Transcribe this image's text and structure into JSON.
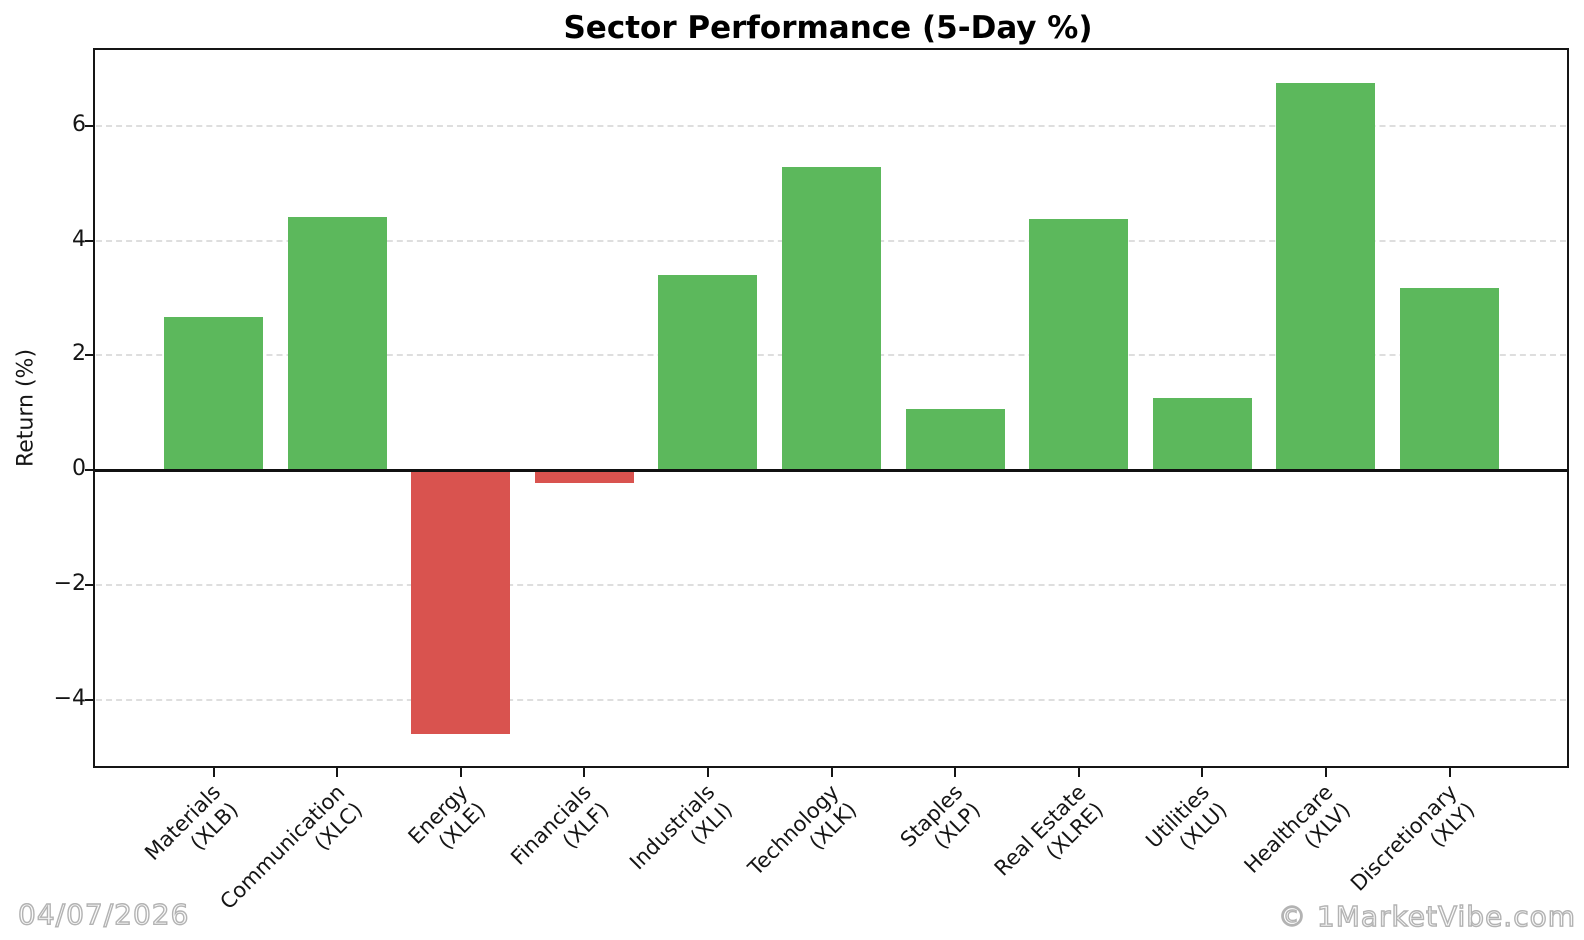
{
  "title": "Sector Performance (5-Day %)",
  "footer": {
    "date": "04/07/2026",
    "brand": "© 1MarketVibe.com"
  },
  "colors": {
    "positive_bar": "#5cb85c",
    "negative_bar": "#d9534f",
    "gridline": "#dedede",
    "axis": "#151515",
    "watermark": "#b3b3b3"
  },
  "chart_data": {
    "type": "bar",
    "title": "Sector Performance (5-Day %)",
    "xlabel": "",
    "ylabel": "Return (%)",
    "ylim": [
      -5.15,
      7.32
    ],
    "grid": true,
    "legend": false,
    "yticks": [
      {
        "value": 6,
        "label": "6"
      },
      {
        "value": 4,
        "label": "4"
      },
      {
        "value": 2,
        "label": "2"
      },
      {
        "value": 0,
        "label": "0"
      },
      {
        "value": -2,
        "label": "−2"
      },
      {
        "value": -4,
        "label": "−4"
      }
    ],
    "categories": [
      {
        "name": "Materials",
        "ticker": "(XLB)"
      },
      {
        "name": "Communication",
        "ticker": "(XLC)"
      },
      {
        "name": "Energy",
        "ticker": "(XLE)"
      },
      {
        "name": "Financials",
        "ticker": "(XLF)"
      },
      {
        "name": "Industrials",
        "ticker": "(XLI)"
      },
      {
        "name": "Technology",
        "ticker": "(XLK)"
      },
      {
        "name": "Staples",
        "ticker": "(XLP)"
      },
      {
        "name": "Real Estate",
        "ticker": "(XLRE)"
      },
      {
        "name": "Utilities",
        "ticker": "(XLU)"
      },
      {
        "name": "Healthcare",
        "ticker": "(XLV)"
      },
      {
        "name": "Discretionary",
        "ticker": "(XLY)"
      }
    ],
    "values": [
      2.67,
      4.42,
      -4.6,
      -0.22,
      3.4,
      5.29,
      1.06,
      4.37,
      1.26,
      6.74,
      3.18
    ]
  }
}
